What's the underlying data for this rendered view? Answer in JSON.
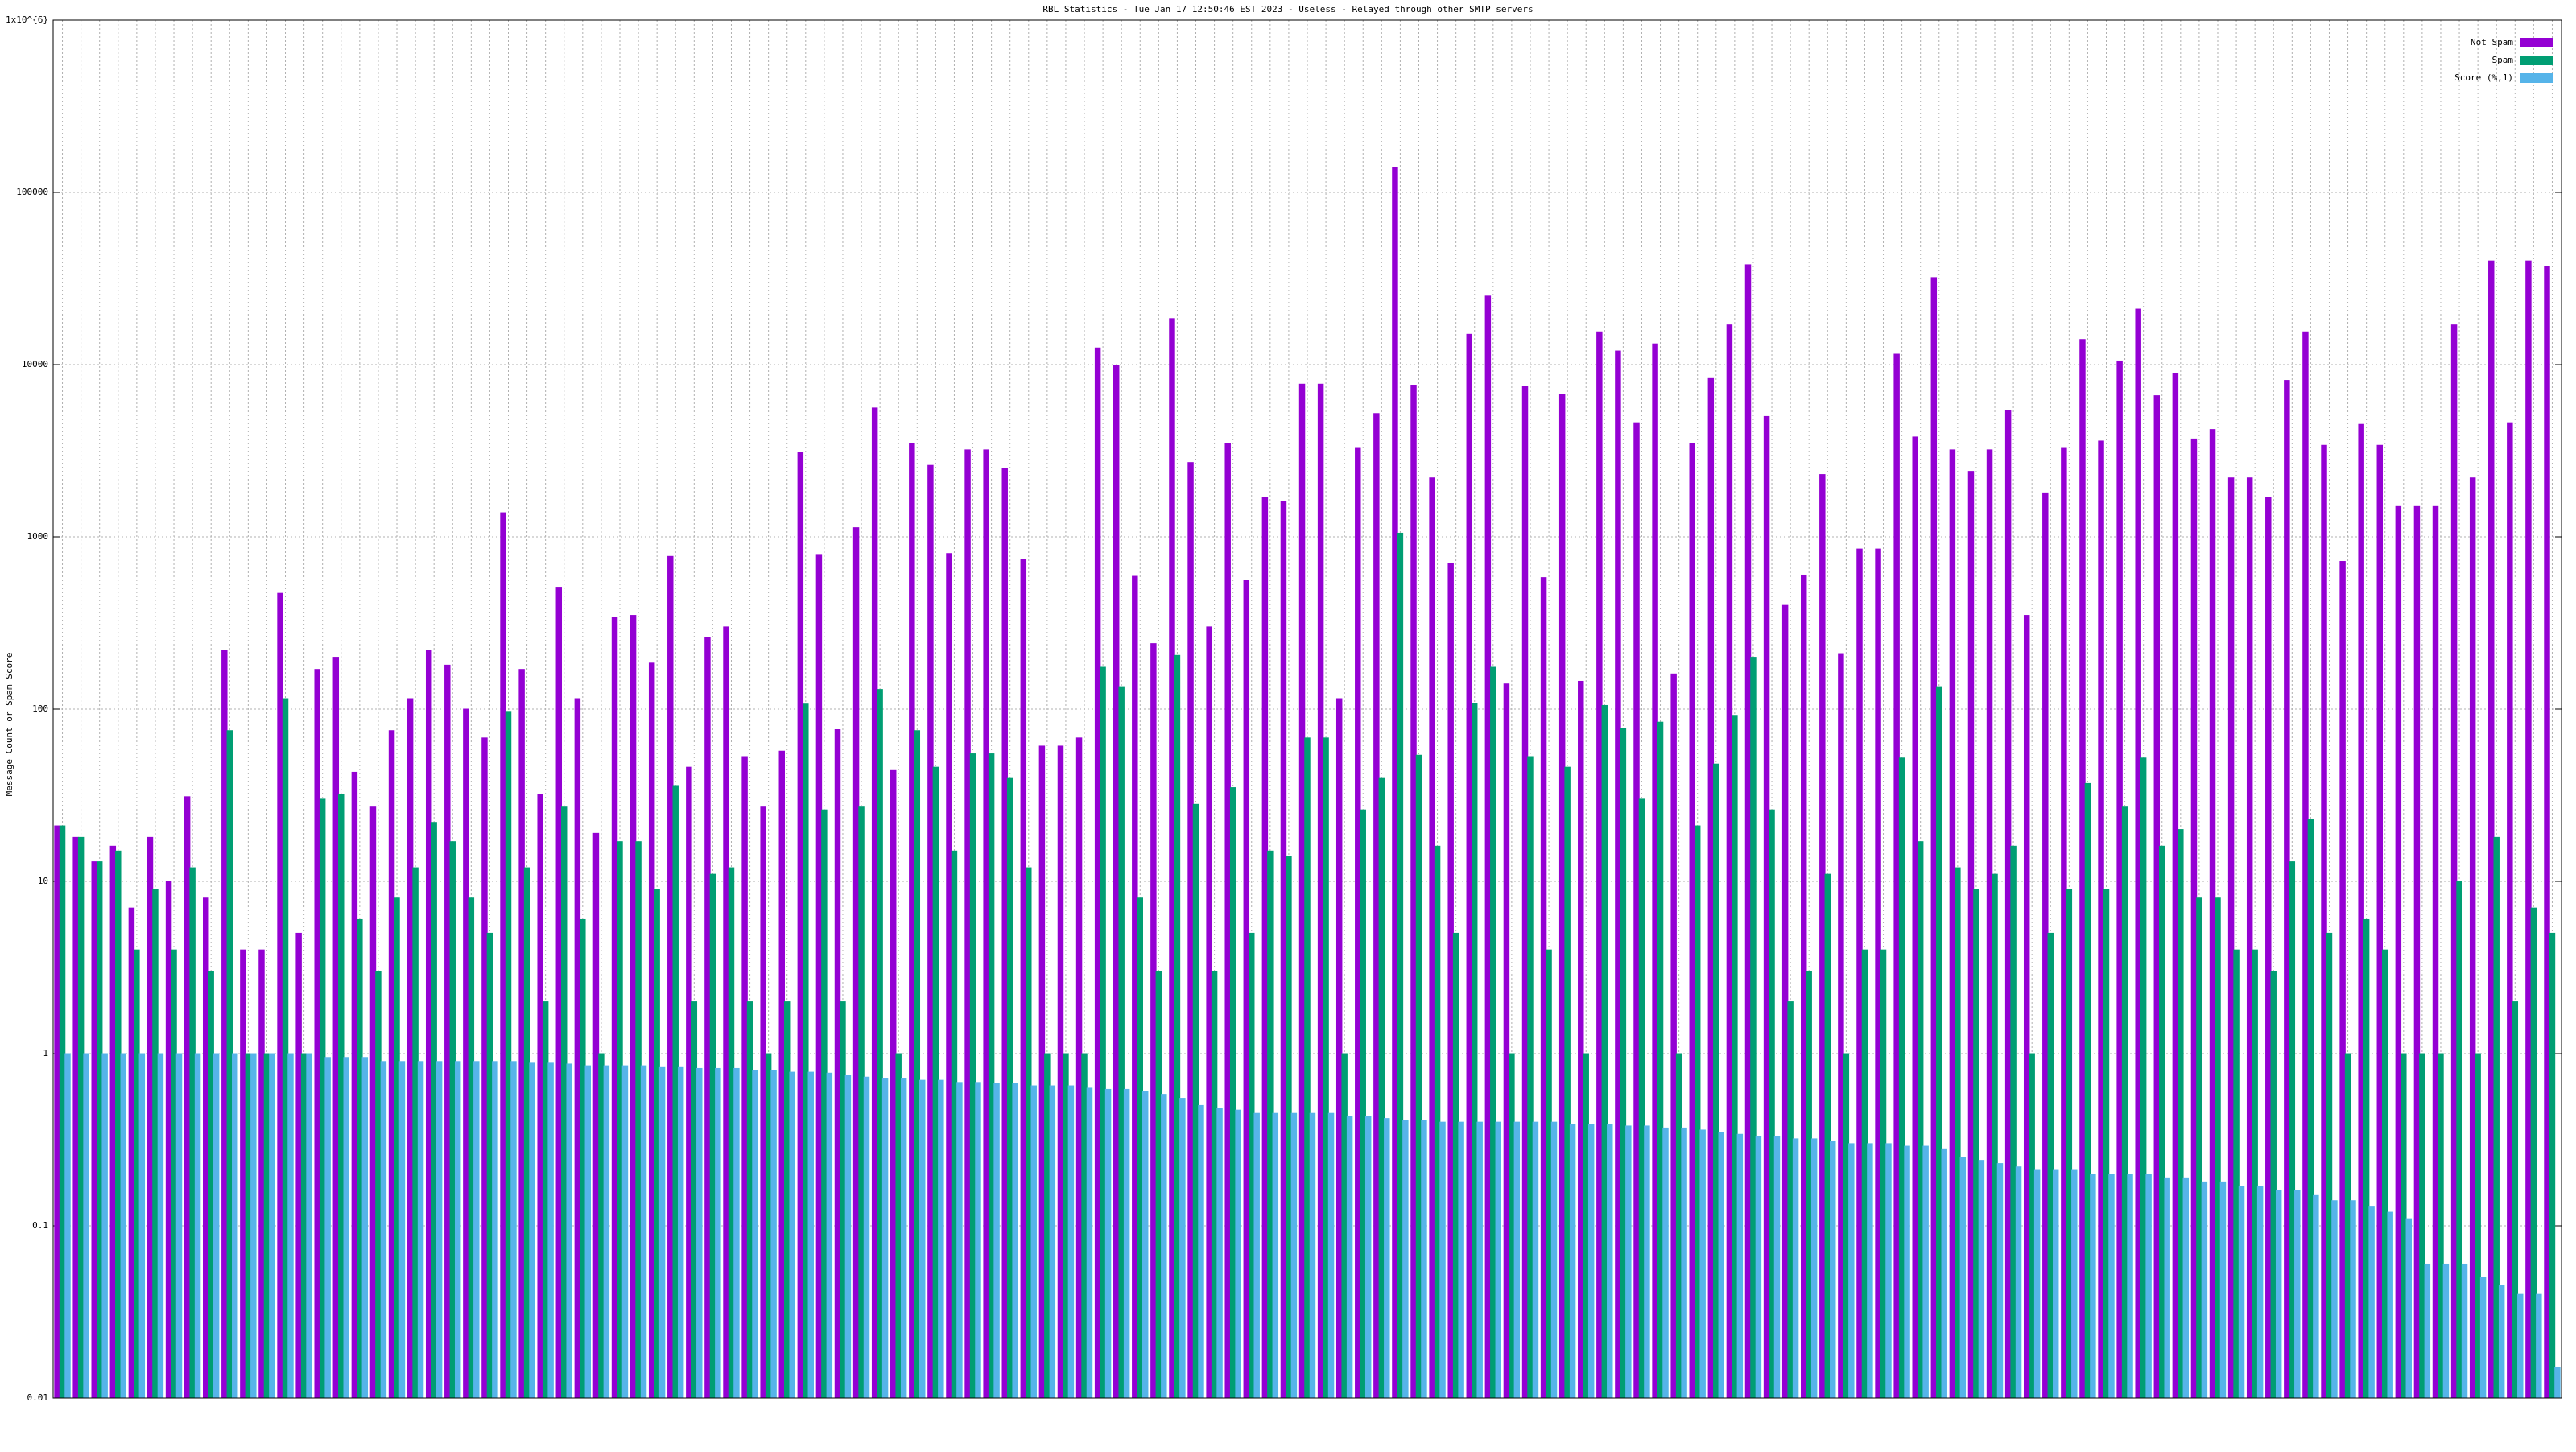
{
  "chart_data": {
    "type": "bar",
    "title": "RBL Statistics - Tue Jan 17 12:50:46 EST 2023 - Useless - Relayed through other SMTP servers",
    "y_label": "Message Count or Spam Score",
    "log_scale": true,
    "grid": true,
    "legend_position": "upper-right",
    "ylim": [
      0.01,
      1000000
    ],
    "yticks": [
      0.01,
      0.1,
      1,
      10,
      100,
      1000,
      10000,
      100000,
      {
        "value": 1000000,
        "label": "1x10^{6}"
      }
    ],
    "categories": [
      null,
      null,
      null,
      null,
      null,
      null,
      null,
      null,
      null,
      null,
      null,
      null,
      null,
      null,
      null,
      null,
      null,
      null,
      null,
      null,
      null,
      null,
      null,
      null,
      null,
      null,
      null,
      null,
      null,
      null,
      null,
      null,
      null,
      null,
      null,
      null,
      null,
      null,
      null,
      null,
      null,
      null,
      null,
      null,
      null,
      null,
      null,
      null,
      null,
      null,
      null,
      null,
      null,
      null,
      null,
      null,
      null,
      null,
      null,
      null,
      null,
      null,
      null,
      null,
      null,
      null,
      null,
      null,
      null,
      null,
      null,
      null,
      null,
      null,
      null,
      null,
      null,
      null,
      null,
      null,
      null,
      null,
      null,
      null,
      null,
      null,
      null,
      null,
      null,
      null,
      null,
      null,
      null,
      null,
      null,
      null,
      null,
      null,
      null,
      null,
      null,
      null,
      null,
      null,
      null,
      null,
      null,
      null,
      null,
      null,
      null,
      null,
      null,
      null,
      null,
      null,
      null,
      null,
      null,
      null,
      null,
      null,
      null,
      null,
      null,
      null,
      null,
      null,
      null,
      null,
      null,
      null,
      null,
      null,
      null
    ],
    "series": [
      {
        "name": "Not Spam",
        "color": "#9400d3",
        "values": [
          21,
          18,
          13,
          16,
          7,
          18,
          10,
          31,
          8,
          220,
          4,
          4,
          470,
          5,
          170,
          200,
          43,
          27,
          75,
          115,
          220,
          180,
          100,
          68,
          1380,
          170,
          32,
          510,
          115,
          19,
          340,
          350,
          185,
          770,
          46,
          260,
          300,
          53,
          27,
          57,
          3100,
          790,
          76,
          1130,
          5600,
          44,
          3500,
          2600,
          800,
          3200,
          3200,
          2500,
          740,
          61,
          61,
          68,
          12500,
          9900,
          590,
          240,
          18500,
          2700,
          300,
          3500,
          560,
          1700,
          1600,
          7700,
          7700,
          115,
          3300,
          5200,
          140000,
          7600,
          2200,
          700,
          15000,
          25000,
          140,
          7500,
          580,
          6700,
          145,
          15500,
          12000,
          4600,
          13200,
          160,
          3500,
          8300,
          17000,
          38000,
          5000,
          400,
          600,
          2300,
          210,
          850,
          850,
          11500,
          3800,
          32000,
          3200,
          2400,
          3200,
          5400,
          350,
          1800,
          3300,
          14000,
          3600,
          10500,
          21000,
          6600,
          8900,
          3700,
          4200,
          2200,
          2200,
          1700,
          8100,
          15500,
          3400,
          720,
          4500,
          3400,
          1500,
          1500,
          1500,
          17000,
          2200,
          40000,
          4600,
          40000,
          37000
        ]
      },
      {
        "name": "Spam",
        "color": "#009e73",
        "values": [
          21,
          18,
          13,
          15,
          4,
          9,
          4,
          12,
          3,
          75,
          1,
          1,
          115,
          1,
          30,
          32,
          6,
          3,
          8,
          12,
          22,
          17,
          8,
          5,
          97,
          12,
          2,
          27,
          6,
          1,
          17,
          17,
          9,
          36,
          2,
          11,
          12,
          2,
          1,
          2,
          107,
          26,
          2,
          27,
          130,
          1,
          75,
          46,
          15,
          55,
          55,
          40,
          12,
          1,
          1,
          1,
          175,
          135,
          8,
          3,
          205,
          28,
          3,
          35,
          5,
          15,
          14,
          68,
          68,
          1,
          26,
          40,
          1050,
          54,
          16,
          5,
          108,
          175,
          1,
          53,
          4,
          46,
          1,
          105,
          77,
          30,
          84,
          1,
          21,
          48,
          92,
          200,
          26,
          2,
          3,
          11,
          1,
          4,
          4,
          52,
          17,
          135,
          12,
          9,
          11,
          16,
          1,
          5,
          9,
          37,
          9,
          27,
          52,
          16,
          20,
          8,
          8,
          4,
          4,
          3,
          13,
          23,
          5,
          1,
          6,
          4,
          1,
          1,
          1,
          10,
          1,
          18,
          2,
          7,
          5
        ]
      },
      {
        "name": "Score (%,1)",
        "color": "#56b4e9",
        "values": [
          1,
          1,
          1,
          1,
          1,
          1,
          1,
          1,
          1,
          1,
          1,
          1,
          1,
          1,
          0.95,
          0.95,
          0.95,
          0.9,
          0.9,
          0.9,
          0.9,
          0.9,
          0.9,
          0.9,
          0.9,
          0.88,
          0.88,
          0.87,
          0.85,
          0.85,
          0.85,
          0.85,
          0.83,
          0.83,
          0.82,
          0.82,
          0.82,
          0.8,
          0.8,
          0.78,
          0.78,
          0.77,
          0.75,
          0.73,
          0.72,
          0.72,
          0.7,
          0.7,
          0.68,
          0.68,
          0.67,
          0.67,
          0.65,
          0.65,
          0.65,
          0.63,
          0.62,
          0.62,
          0.6,
          0.58,
          0.55,
          0.5,
          0.48,
          0.47,
          0.45,
          0.45,
          0.45,
          0.45,
          0.45,
          0.43,
          0.43,
          0.42,
          0.41,
          0.41,
          0.4,
          0.4,
          0.4,
          0.4,
          0.4,
          0.4,
          0.4,
          0.39,
          0.39,
          0.39,
          0.38,
          0.38,
          0.37,
          0.37,
          0.36,
          0.35,
          0.34,
          0.33,
          0.33,
          0.32,
          0.32,
          0.31,
          0.3,
          0.3,
          0.3,
          0.29,
          0.29,
          0.28,
          0.25,
          0.24,
          0.23,
          0.22,
          0.21,
          0.21,
          0.21,
          0.2,
          0.2,
          0.2,
          0.2,
          0.19,
          0.19,
          0.18,
          0.18,
          0.17,
          0.17,
          0.16,
          0.16,
          0.15,
          0.14,
          0.14,
          0.13,
          0.12,
          0.11,
          0.06,
          0.06,
          0.06,
          0.05,
          0.045,
          0.04,
          0.04,
          0.015
        ]
      }
    ]
  }
}
